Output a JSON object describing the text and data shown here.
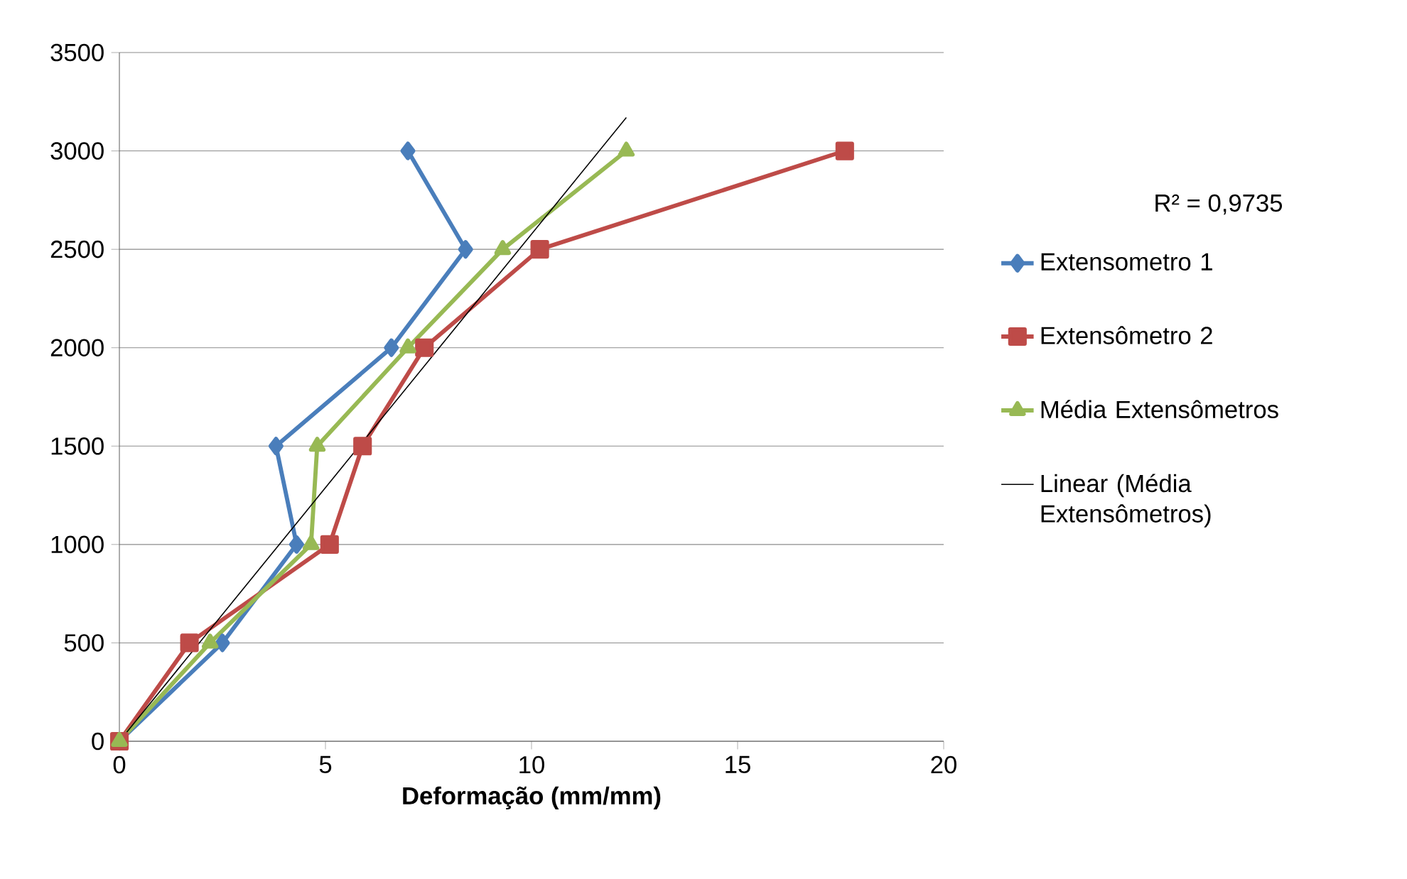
{
  "chart_data": {
    "type": "line",
    "xlabel": "Deformação (mm/mm)",
    "xlim": [
      0,
      20
    ],
    "xticks": [
      0,
      5,
      10,
      15,
      20
    ],
    "ylim": [
      0,
      3500
    ],
    "yticks": [
      0,
      500,
      1000,
      1500,
      2000,
      2500,
      3000,
      3500
    ],
    "grid": "y",
    "legend": "right",
    "annotations": [
      "R² = 0,9735"
    ],
    "series": [
      {
        "name": "Extensometro 1",
        "color": "#4a7ebb",
        "marker": "diamond",
        "x": [
          0,
          2.5,
          4.3,
          3.8,
          6.6,
          8.4,
          7.0
        ],
        "values": [
          0,
          500,
          1000,
          1500,
          2000,
          2500,
          3000
        ]
      },
      {
        "name": "Extensômetro 2",
        "color": "#be4b48",
        "marker": "square",
        "x": [
          0,
          1.7,
          5.1,
          5.9,
          7.4,
          10.2,
          17.6
        ],
        "values": [
          0,
          500,
          1000,
          1500,
          2000,
          2500,
          3000
        ]
      },
      {
        "name": "Média Extensômetros",
        "color": "#98b954",
        "marker": "triangle",
        "x": [
          0,
          2.2,
          4.65,
          4.8,
          7.0,
          9.3,
          12.3
        ],
        "values": [
          0,
          500,
          1000,
          1500,
          2000,
          2500,
          3000
        ]
      },
      {
        "name": "Linear (Média Extensômetros)",
        "color": "#000000",
        "marker": "none",
        "x": [
          0,
          12.3
        ],
        "values": [
          0,
          3170
        ]
      }
    ]
  }
}
